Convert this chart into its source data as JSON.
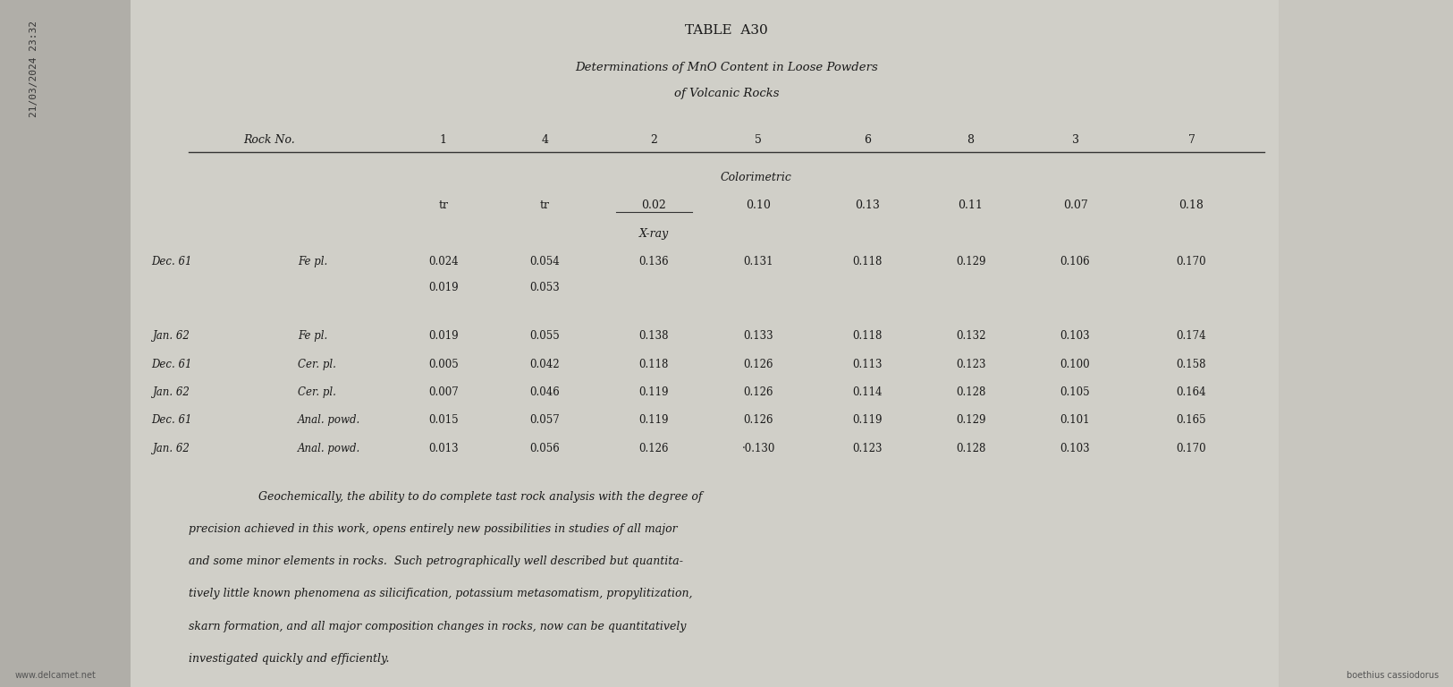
{
  "bg_color": "#d0cfc8",
  "page_color": "#e8e6df",
  "title": "TABLE  A30",
  "subtitle1": "Determinations of MnO Content in Loose Powders",
  "subtitle2": "of Volcanic Rocks",
  "timestamp": "21/03/2024 23:32",
  "watermark": "www.delcamet.net",
  "attribution": "boethius cassiodorus",
  "rock_no_label": "Rock No.",
  "col_headers": [
    "1",
    "4",
    "2",
    "5",
    "6",
    "8",
    "3",
    "7"
  ],
  "colorimetric_label": "Colorimetric",
  "colorimetric_values": [
    "tr",
    "tr",
    "0.02",
    "0.10",
    "0.13",
    "0.11",
    "0.07",
    "0.18"
  ],
  "colorimetric_underline": [
    false,
    false,
    true,
    false,
    false,
    false,
    false,
    false
  ],
  "xray_label": "X-ray",
  "row_groups": [
    {
      "date": "Dec. 61",
      "material": "Fe pl.",
      "subrows": [
        [
          "0.024",
          "0.054",
          "0.136",
          "0.131",
          "0.118",
          "0.129",
          "0.106",
          "0.170"
        ],
        [
          "0.019",
          "0.053",
          "",
          "",
          "",
          "",
          "",
          ""
        ]
      ]
    },
    {
      "date": "Jan. 62",
      "material": "Fe pl.",
      "subrows": [
        [
          "0.019",
          "0.055",
          "0.138",
          "0.133",
          "0.118",
          "0.132",
          "0.103",
          "0.174"
        ]
      ]
    },
    {
      "date": "Dec. 61",
      "material": "Cer. pl.",
      "subrows": [
        [
          "0.005",
          "0.042",
          "0.118",
          "0.126",
          "0.113",
          "0.123",
          "0.100",
          "0.158"
        ]
      ]
    },
    {
      "date": "Jan. 62",
      "material": "Cer. pl.",
      "subrows": [
        [
          "0.007",
          "0.046",
          "0.119",
          "0.126",
          "0.114",
          "0.128",
          "0.105",
          "0.164"
        ]
      ]
    },
    {
      "date": "Dec. 61",
      "material": "Anal. powd.",
      "subrows": [
        [
          "0.015",
          "0.057",
          "0.119",
          "0.126",
          "0.119",
          "0.129",
          "0.101",
          "0.165"
        ]
      ]
    },
    {
      "date": "Jan. 62",
      "material": "Anal. powd.",
      "subrows": [
        [
          "0.013",
          "0.056",
          "0.126",
          "·0.130",
          "0.123",
          "0.128",
          "0.103",
          "0.170"
        ]
      ]
    }
  ],
  "paragraph": "Geochemically, the ability to do complete tast rock analysis with the degree of\nprecision achieved in this work, opens entirely new possibilities in studies of all major\nand some minor elements in rocks.  Such petrographically well described but quantita-\ntively little known phenomena as silicification, potassium metasomatism, propylitization,\nskarn formation, and all major composition changes in rocks, now can be quantitatively\ninvestigated quickly and efficiently."
}
